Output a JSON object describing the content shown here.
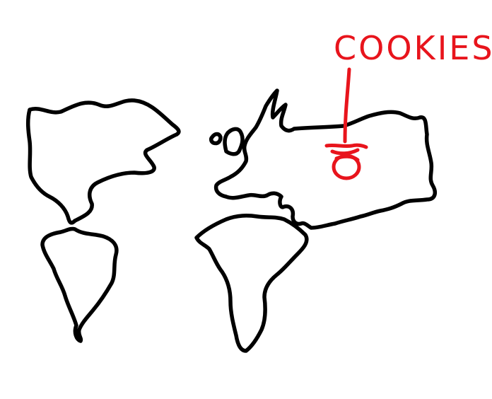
{
  "map": {
    "annotation_label": "COOKIES",
    "colors": {
      "background": "#ffffff",
      "continent_outline": "#000000",
      "annotation": "#e8141c"
    },
    "marker_symbol": "cookie-stack-icon"
  }
}
